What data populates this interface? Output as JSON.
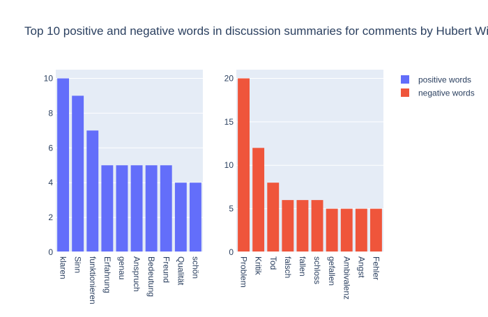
{
  "chart_data": [
    {
      "type": "bar",
      "name": "positive words",
      "color": "#636efa",
      "categories": [
        "klaren",
        "Sinn",
        "funktionieren",
        "Erfahrung",
        "genau",
        "Anspruch",
        "Bedeutung",
        "Freund",
        "Qualität",
        "schön"
      ],
      "values": [
        10,
        9,
        7,
        5,
        5,
        5,
        5,
        5,
        4,
        4
      ],
      "ylim": [
        0,
        10.5
      ],
      "yticks": [
        0,
        2,
        4,
        6,
        8,
        10
      ],
      "grid": true
    },
    {
      "type": "bar",
      "name": "negative words",
      "color": "#ef553b",
      "categories": [
        "Problem",
        "Kritik",
        "Tod",
        "falsch",
        "fallen",
        "schloss",
        "gefallen",
        "Ambivalenz",
        "Angst",
        "Fehler"
      ],
      "values": [
        20,
        12,
        8,
        6,
        6,
        6,
        5,
        5,
        5,
        5
      ],
      "ylim": [
        0,
        21
      ],
      "yticks": [
        0,
        5,
        10,
        15,
        20
      ],
      "grid": true
    }
  ],
  "title": "Top 10 positive and negative words in discussion summaries for comments by Hubert Wi",
  "legend": {
    "placement": "top-right",
    "items": [
      {
        "label": "positive words",
        "color": "#636efa"
      },
      {
        "label": "negative words",
        "color": "#ef553b"
      }
    ]
  },
  "colors": {
    "plot_bg": "#e5ecf6",
    "grid": "#ffffff",
    "text": "#2a3f5f"
  }
}
